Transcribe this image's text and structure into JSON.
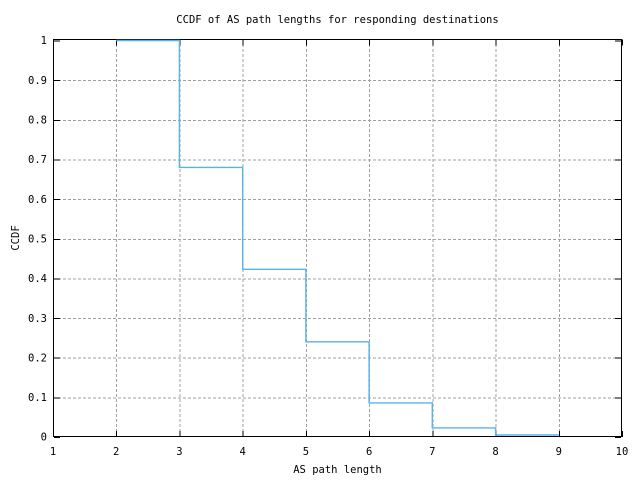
{
  "chart_data": {
    "type": "line",
    "line_style": "step-post",
    "title": "CCDF of AS path lengths for responding destinations",
    "xlabel": "AS path length",
    "ylabel": "CCDF",
    "xlim": [
      1,
      10
    ],
    "ylim": [
      0,
      1
    ],
    "grid": true,
    "legend": false,
    "xticks": {
      "values": [
        1,
        2,
        3,
        4,
        5,
        6,
        7,
        8,
        9,
        10
      ],
      "labels": [
        "1",
        "2",
        "3",
        "4",
        "5",
        "6",
        "7",
        "8",
        "9",
        "10"
      ]
    },
    "yticks": {
      "values": [
        0,
        0.1,
        0.2,
        0.3,
        0.4,
        0.5,
        0.6,
        0.7,
        0.8,
        0.9,
        1
      ],
      "labels": [
        "0",
        "0.1",
        "0.2",
        "0.3",
        "0.4",
        "0.5",
        "0.6",
        "0.7",
        "0.8",
        "0.9",
        "1"
      ]
    },
    "steps": [
      {
        "from": 2,
        "to": 3,
        "ccdf": 1.0
      },
      {
        "from": 3,
        "to": 4,
        "ccdf": 0.68
      },
      {
        "from": 4,
        "to": 5,
        "ccdf": 0.423
      },
      {
        "from": 5,
        "to": 6,
        "ccdf": 0.24
      },
      {
        "from": 6,
        "to": 7,
        "ccdf": 0.086
      },
      {
        "from": 7,
        "to": 8,
        "ccdf": 0.023
      },
      {
        "from": 8,
        "to": 9,
        "ccdf": 0.005
      }
    ],
    "colors": {
      "line": "#56b4e9",
      "grid": "#a0a0a0",
      "axis": "#000000",
      "text": "#000000",
      "background": "#ffffff"
    }
  }
}
